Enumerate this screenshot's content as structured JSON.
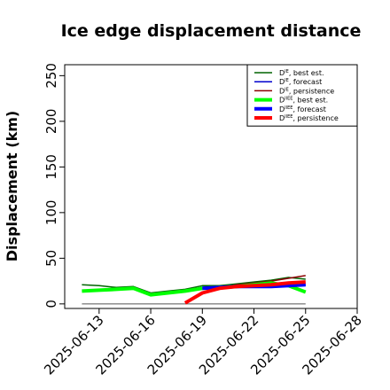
{
  "chart_data": {
    "type": "line",
    "title": "Ice edge displacement distance",
    "ylabel": "Displacement (km)",
    "xlabel": "",
    "ylim": [
      -5,
      262
    ],
    "xlim": [
      "2025-06-11",
      "2025-06-28"
    ],
    "yticks": [
      0,
      50,
      100,
      150,
      200,
      250
    ],
    "xticks": [
      "2025-06-13",
      "2025-06-16",
      "2025-06-19",
      "2025-06-22",
      "2025-06-25",
      "2025-06-28"
    ],
    "highlight_tick": "2025-06-19",
    "highlight_color": "#228B22",
    "grid": false,
    "legend_position": "top-right",
    "series": [
      {
        "name": "D^IE, best est.",
        "base": "D",
        "sup": "IE",
        "suffix": ", best est.",
        "color": "#006400",
        "width": 1.5,
        "x": [
          "2025-06-12",
          "2025-06-13",
          "2025-06-14",
          "2025-06-15",
          "2025-06-16",
          "2025-06-17",
          "2025-06-18",
          "2025-06-19",
          "2025-06-20",
          "2025-06-21",
          "2025-06-22",
          "2025-06-23",
          "2025-06-24",
          "2025-06-25"
        ],
        "values": [
          21,
          20,
          18,
          19,
          12,
          14,
          16,
          20,
          20,
          22,
          24,
          26,
          29,
          27
        ]
      },
      {
        "name": "D^IE, forecast",
        "base": "D",
        "sup": "IE",
        "suffix": ", forecast",
        "color": "#0000CD",
        "width": 1.5,
        "x": [
          "2025-06-19",
          "2025-06-20",
          "2025-06-21",
          "2025-06-22",
          "2025-06-23",
          "2025-06-24",
          "2025-06-25"
        ],
        "values": [
          16,
          18,
          19,
          20,
          20,
          20,
          21
        ]
      },
      {
        "name": "D^IE, persistence",
        "base": "D",
        "sup": "IE",
        "suffix": ", persistence",
        "color": "#8B0000",
        "width": 1.5,
        "x": [
          "2025-06-19",
          "2025-06-20",
          "2025-06-21",
          "2025-06-22",
          "2025-06-23",
          "2025-06-24",
          "2025-06-25"
        ],
        "values": [
          12,
          17,
          21,
          23,
          25,
          28,
          31
        ]
      },
      {
        "name": "D^IIEE, best est.",
        "base": "D",
        "sup": "IIEE",
        "suffix": ", best est.",
        "color": "#00FF00",
        "width": 4,
        "x": [
          "2025-06-12",
          "2025-06-13",
          "2025-06-14",
          "2025-06-15",
          "2025-06-16",
          "2025-06-17",
          "2025-06-18",
          "2025-06-19",
          "2025-06-20",
          "2025-06-21",
          "2025-06-22",
          "2025-06-23",
          "2025-06-24",
          "2025-06-25"
        ],
        "values": [
          14,
          15,
          16,
          17,
          10,
          12,
          14,
          17,
          18,
          19,
          21,
          23,
          20,
          13
        ]
      },
      {
        "name": "D^IIEE, forecast",
        "base": "D",
        "sup": "IIEE",
        "suffix": ", forecast",
        "color": "#0000FF",
        "width": 4,
        "x": [
          "2025-06-19",
          "2025-06-20",
          "2025-06-21",
          "2025-06-22",
          "2025-06-23",
          "2025-06-24",
          "2025-06-25"
        ],
        "values": [
          17,
          18,
          19,
          19,
          19,
          20,
          21
        ]
      },
      {
        "name": "D^IIEE, persistence",
        "base": "D",
        "sup": "IIEE",
        "suffix": ", persistence",
        "color": "#FF0000",
        "width": 4,
        "x": [
          "2025-06-18",
          "2025-06-19",
          "2025-06-20",
          "2025-06-21",
          "2025-06-22",
          "2025-06-23",
          "2025-06-24",
          "2025-06-25"
        ],
        "values": [
          1,
          12,
          17,
          19,
          20,
          21,
          23,
          24
        ]
      }
    ],
    "reference_line": {
      "color": "#555555",
      "y": 0,
      "x": [
        "2025-06-12",
        "2025-06-25"
      ]
    }
  }
}
